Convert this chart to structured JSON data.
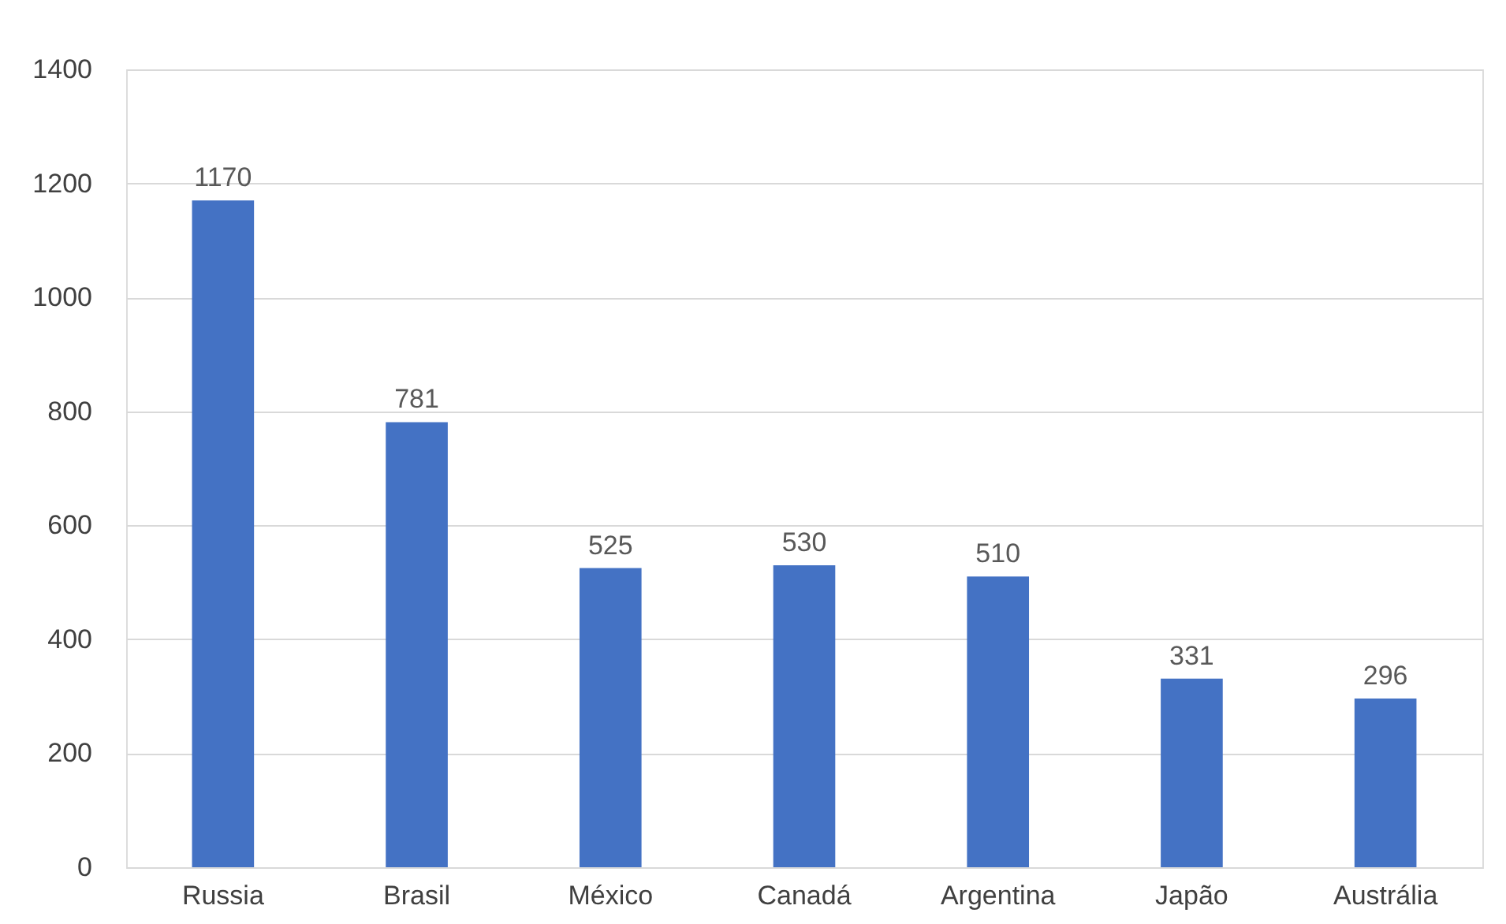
{
  "chart_data": {
    "type": "bar",
    "categories": [
      "Russia",
      "Brasil",
      "México",
      "Canadá",
      "Argentina",
      "Japão",
      "Austrália"
    ],
    "values": [
      1170,
      781,
      525,
      530,
      510,
      331,
      296
    ],
    "color": "#4472c4",
    "ylim": [
      0,
      1400
    ],
    "yticks": [
      0,
      200,
      400,
      600,
      800,
      1000,
      1200,
      1400
    ],
    "grid": "y",
    "data_labels": true
  }
}
